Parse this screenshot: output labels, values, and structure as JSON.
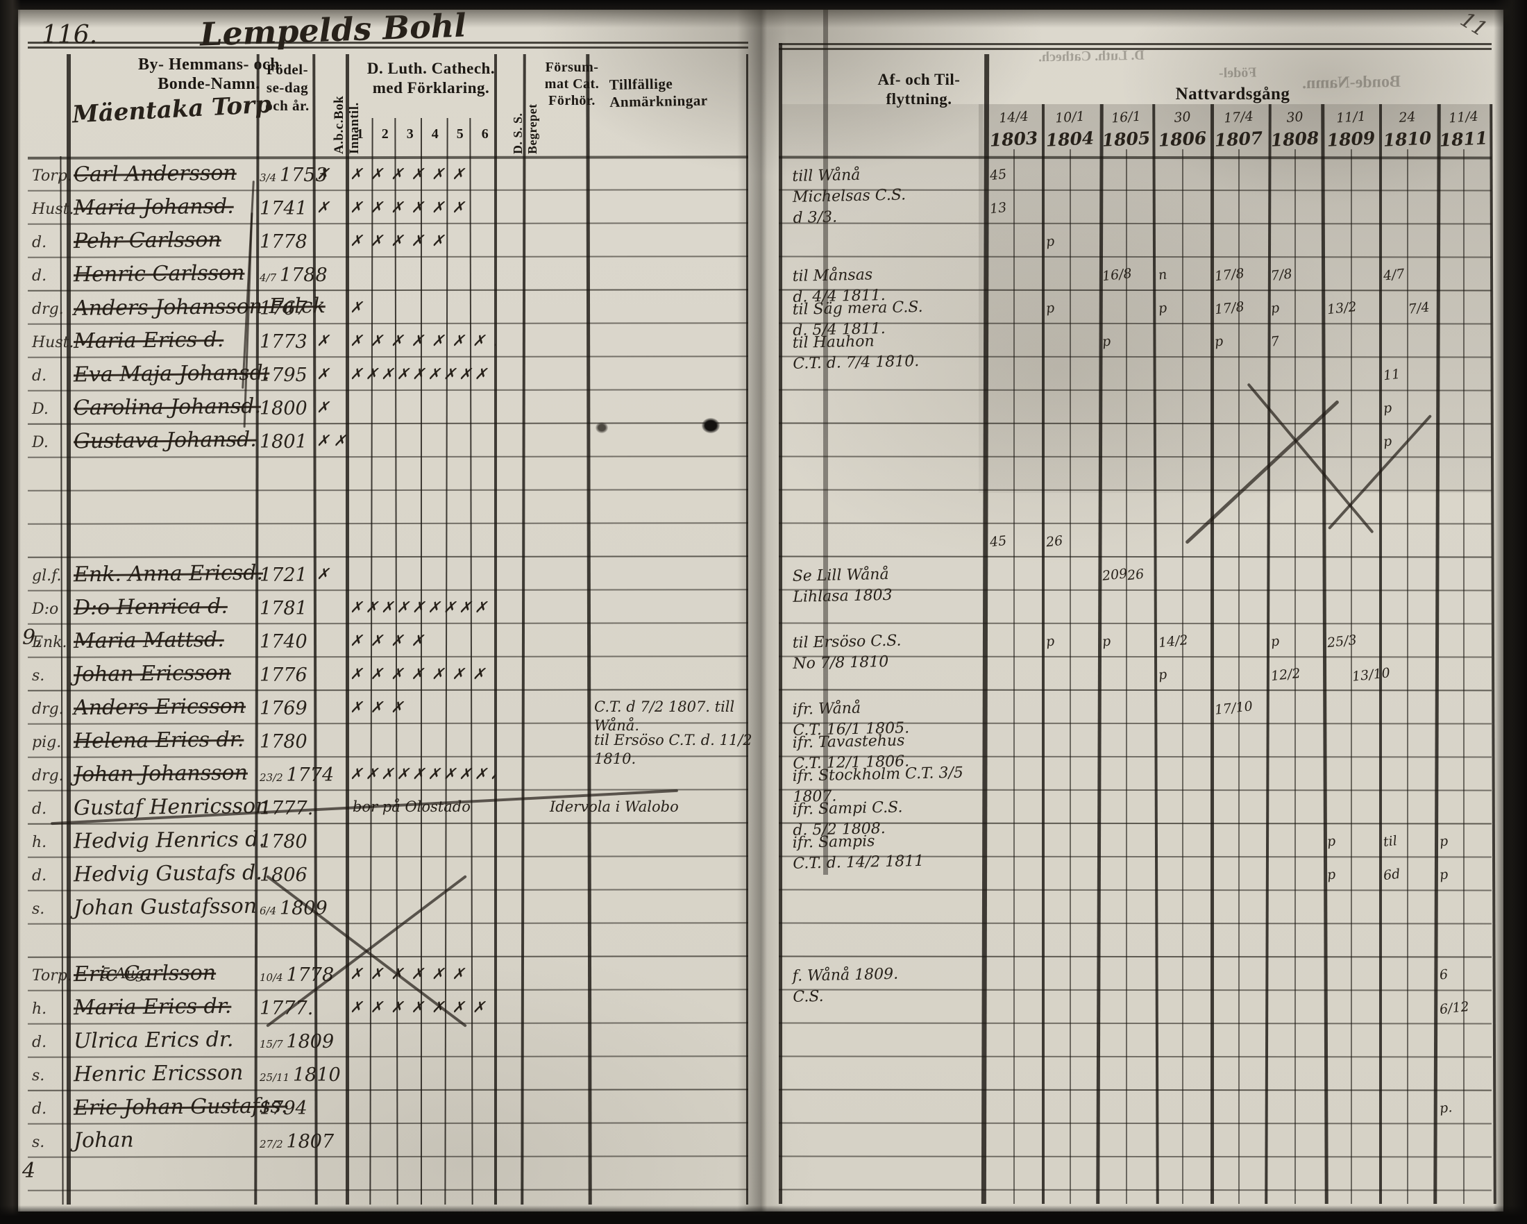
{
  "page": {
    "left_number": "116.",
    "right_number": "11",
    "title_script": "Lempelds Bohl",
    "margin_marks": [
      {
        "line": 15,
        "text": "9,"
      },
      {
        "line": 31,
        "text": "4"
      }
    ]
  },
  "left_page": {
    "headers": {
      "names": [
        "By- Hemmans- och",
        "Bonde-Namn."
      ],
      "village_script": "Mäentaka Torp",
      "birth": [
        "Födel-",
        "se-dag",
        "och år."
      ],
      "abc_vertical": "A.b.c.Bok Innantil.",
      "catechism": [
        "D. Luth. Cathech.",
        "med Förklaring."
      ],
      "catechism_cols": [
        "1",
        "2",
        "3",
        "4",
        "5",
        "6"
      ],
      "dss_vertical": "D. S. S. Begrepet",
      "forsummat": [
        "Försum-",
        "mat Cat.",
        "Förhör."
      ],
      "anmarkningar": "Tillfällige Anmärkningar"
    },
    "notes": [
      {
        "line": 17,
        "col": "anm",
        "lines": [
          "C.T. d 7/2 1807. till",
          "Wånå."
        ]
      },
      {
        "line": 18,
        "col": "anm",
        "lines": [
          "til Ersöso C.T. d. 11/2",
          "1810."
        ]
      },
      {
        "line": 20,
        "col": "cat",
        "lines": [
          "bor på Olostado"
        ]
      },
      {
        "line": 20,
        "col": "dss",
        "lines": [
          "Idervola i Walobo"
        ]
      },
      {
        "line": 25,
        "col": "name_sub",
        "lines": [
          "5 Aug."
        ]
      }
    ]
  },
  "rows": [
    {
      "line": 1,
      "prefix": "Torp.",
      "name": "Carl Andersson",
      "bp": "3/4",
      "by": "1753",
      "abc": "✗",
      "cat": "✗✗✗✗✗✗",
      "strike": true
    },
    {
      "line": 2,
      "prefix": "Hust.",
      "name": "Maria Johansd.",
      "bp": "",
      "by": "1741",
      "abc": "✗",
      "cat": "✗✗✗✗✗✗",
      "strike": true
    },
    {
      "line": 3,
      "prefix": "d.",
      "name": "Pehr Carlsson",
      "bp": "",
      "by": "1778",
      "abc": "",
      "cat": "✗✗✗✗✗",
      "strike": true
    },
    {
      "line": 4,
      "prefix": "d.",
      "name": "Henric Carlsson",
      "bp": "4/7",
      "by": "1788",
      "abc": "",
      "cat": "",
      "strike": true
    },
    {
      "line": 5,
      "prefix": "drg.",
      "name": "Anders Johansson Falck",
      "bp": "",
      "by": "1767",
      "abc": "",
      "cat": "✗",
      "strike": true
    },
    {
      "line": 6,
      "prefix": "Hust.",
      "name": "Maria Erics d.",
      "bp": "",
      "by": "1773",
      "abc": "✗",
      "cat": "✗✗✗✗✗✗✗✗",
      "strike": true
    },
    {
      "line": 7,
      "prefix": "d.",
      "name": "Eva Maja Johansd.",
      "bp": "",
      "by": "1795",
      "abc": "✗",
      "cat": "✗✗✗✗✗✗✗✗✗",
      "strike": true
    },
    {
      "line": 8,
      "prefix": "D.",
      "name": "Carolina Johansd.",
      "bp": "",
      "by": "1800",
      "abc": "✗",
      "cat": "",
      "strike": true
    },
    {
      "line": 9,
      "prefix": "D.",
      "name": "Gustava Johansd.",
      "bp": "",
      "by": "1801",
      "abc": "✗✗",
      "cat": "",
      "strike": true
    },
    {
      "line": 13,
      "prefix": "gl.f.",
      "name": "Enk. Anna Ericsd.",
      "bp": "",
      "by": "1721",
      "abc": "✗",
      "cat": "",
      "strike": true
    },
    {
      "line": 14,
      "prefix": "D:o",
      "name": "D:o Henrica d.",
      "bp": "",
      "by": "1781",
      "abc": "",
      "cat": "✗✗✗✗✗✗✗✗✗",
      "strike": true
    },
    {
      "line": 15,
      "prefix": "Enk.",
      "name": "Maria Mattsd.",
      "bp": "",
      "by": "1740",
      "abc": "",
      "cat": "✗✗✗✗",
      "strike": true
    },
    {
      "line": 16,
      "prefix": "s.",
      "name": "Johan Ericsson",
      "bp": "",
      "by": "1776",
      "abc": "",
      "cat": "✗✗✗✗✗✗✗",
      "strike": true
    },
    {
      "line": 17,
      "prefix": "drg.",
      "name": "Anders Ericsson",
      "bp": "",
      "by": "1769",
      "abc": "",
      "cat": "✗✗✗",
      "strike": true
    },
    {
      "line": 18,
      "prefix": "pig.",
      "name": "Helena Erics dr.",
      "bp": "",
      "by": "1780",
      "abc": "",
      "cat": "",
      "strike": true
    },
    {
      "line": 19,
      "prefix": "drg.",
      "name": "Johan Johansson",
      "bp": "23/2",
      "by": "1774",
      "abc": "",
      "cat": "✗✗✗✗✗✗✗✗✗✗",
      "strike": true
    },
    {
      "line": 20,
      "prefix": "d.",
      "name": "Gustaf Henricsson",
      "bp": "",
      "by": "1777.",
      "abc": "",
      "cat": "",
      "strike": false
    },
    {
      "line": 21,
      "prefix": "h.",
      "name": "Hedvig Henrics d.",
      "bp": "",
      "by": "1780",
      "abc": "",
      "cat": "",
      "strike": false
    },
    {
      "line": 22,
      "prefix": "d.",
      "name": "Hedvig Gustafs d.",
      "bp": "",
      "by": "1806",
      "abc": "",
      "cat": "",
      "strike": false
    },
    {
      "line": 23,
      "prefix": "s.",
      "name": "Johan Gustafsson",
      "bp": "6/4",
      "by": "1809",
      "abc": "",
      "cat": "",
      "strike": false
    },
    {
      "line": 25,
      "prefix": "Torp.",
      "name": "Eric Carlsson",
      "bp": "10/4",
      "by": "1778",
      "abc": "",
      "cat": "✗✗✗✗✗✗",
      "strike": true
    },
    {
      "line": 26,
      "prefix": "h.",
      "name": "Maria Erics dr.",
      "bp": "",
      "by": "1777.",
      "abc": "",
      "cat": "✗✗✗✗✗✗✗",
      "strike": true
    },
    {
      "line": 27,
      "prefix": "d.",
      "name": "Ulrica Erics dr.",
      "bp": "15/7",
      "by": "1809",
      "abc": "",
      "cat": "",
      "strike": false
    },
    {
      "line": 28,
      "prefix": "s.",
      "name": "Henric Ericsson",
      "bp": "25/11",
      "by": "1810",
      "abc": "",
      "cat": "",
      "strike": false
    },
    {
      "line": 29,
      "prefix": "d.",
      "name": "Eric Johan Gustafss.",
      "bp": "",
      "by": "1794",
      "abc": "",
      "cat": "",
      "strike": true
    },
    {
      "line": 30,
      "prefix": "s.",
      "name": "Johan",
      "bp": "27/2",
      "by": "1807",
      "abc": "",
      "cat": "",
      "strike": false
    }
  ],
  "right_page": {
    "headers": {
      "flyttning": [
        "Af- och Til-",
        "flyttning."
      ],
      "nattvardsgang": "Nattvardsgång",
      "years": [
        {
          "date": "14/4",
          "year": "1803"
        },
        {
          "date": "10/1",
          "year": "1804"
        },
        {
          "date": "16/1",
          "year": "1805"
        },
        {
          "date": "30",
          "year": "1806"
        },
        {
          "date": "17/4",
          "year": "1807"
        },
        {
          "date": "30",
          "year": "1808"
        },
        {
          "date": "11/1",
          "year": "1809"
        },
        {
          "date": "24",
          "year": "1810"
        },
        {
          "date": "11/4",
          "year": "1811"
        }
      ]
    },
    "flytt_notes": [
      {
        "line": 1,
        "lines": [
          "till Wånå",
          "Michelsas C.S.",
          "d 3/3."
        ]
      },
      {
        "line": 4,
        "lines": [
          "til Månsas",
          "d. 4/4 1811."
        ]
      },
      {
        "line": 5,
        "lines": [
          "til Säg mera C.S.",
          "d. 5/4 1811."
        ]
      },
      {
        "line": 6,
        "lines": [
          "til Hauhon",
          "C.T. d. 7/4 1810."
        ]
      },
      {
        "line": 13,
        "lines": [
          "Se Lill Wånå",
          "Lihlasa 1803"
        ]
      },
      {
        "line": 15,
        "lines": [
          "til Ersöso C.S.",
          "No 7/8 1810"
        ]
      },
      {
        "line": 17,
        "lines": [
          "ifr. Wånå",
          "C.T. 16/1 1805."
        ]
      },
      {
        "line": 18,
        "lines": [
          "ifr. Tavastehus",
          "C.T. 12/1 1806."
        ]
      },
      {
        "line": 19,
        "lines": [
          "ifr. Stockholm C.T. 3/5",
          "1807."
        ]
      },
      {
        "line": 20,
        "lines": [
          "ifr. Sampi C.S.",
          "d. 5/2 1808."
        ]
      },
      {
        "line": 21,
        "lines": [
          "ifr. Sampis",
          "C.T. d. 14/2 1811"
        ]
      },
      {
        "line": 25,
        "lines": [
          "f. Wånå 1809.",
          "C.S."
        ]
      }
    ],
    "communion_marks": [
      {
        "line": 1,
        "yi": 0,
        "h": 0,
        "t": "45"
      },
      {
        "line": 2,
        "yi": 0,
        "h": 0,
        "t": "13"
      },
      {
        "line": 3,
        "yi": 1,
        "h": 0,
        "t": "p"
      },
      {
        "line": 4,
        "yi": 2,
        "h": 0,
        "t": "16/8"
      },
      {
        "line": 4,
        "yi": 3,
        "h": 0,
        "t": "n"
      },
      {
        "line": 4,
        "yi": 4,
        "h": 0,
        "t": "17/8"
      },
      {
        "line": 4,
        "yi": 5,
        "h": 0,
        "t": "7/8"
      },
      {
        "line": 4,
        "yi": 7,
        "h": 0,
        "t": "4/7"
      },
      {
        "line": 5,
        "yi": 1,
        "h": 0,
        "t": "p"
      },
      {
        "line": 5,
        "yi": 3,
        "h": 0,
        "t": "p"
      },
      {
        "line": 5,
        "yi": 4,
        "h": 0,
        "t": "17/8"
      },
      {
        "line": 5,
        "yi": 5,
        "h": 0,
        "t": "p"
      },
      {
        "line": 5,
        "yi": 6,
        "h": 0,
        "t": "13/2"
      },
      {
        "line": 5,
        "yi": 7,
        "h": 1,
        "t": "7/4"
      },
      {
        "line": 6,
        "yi": 2,
        "h": 0,
        "t": "p"
      },
      {
        "line": 6,
        "yi": 4,
        "h": 0,
        "t": "p"
      },
      {
        "line": 6,
        "yi": 5,
        "h": 0,
        "t": "7"
      },
      {
        "line": 7,
        "yi": 7,
        "h": 0,
        "t": "11"
      },
      {
        "line": 8,
        "yi": 7,
        "h": 0,
        "t": "p"
      },
      {
        "line": 9,
        "yi": 7,
        "h": 0,
        "t": "p"
      },
      {
        "line": 12,
        "yi": 0,
        "h": 0,
        "t": "45"
      },
      {
        "line": 12,
        "yi": 1,
        "h": 0,
        "t": "26"
      },
      {
        "line": 13,
        "yi": 2,
        "h": 0,
        "t": "209"
      },
      {
        "line": 13,
        "yi": 2,
        "h": 1,
        "t": "26"
      },
      {
        "line": 15,
        "yi": 1,
        "h": 0,
        "t": "p"
      },
      {
        "line": 15,
        "yi": 2,
        "h": 0,
        "t": "p"
      },
      {
        "line": 15,
        "yi": 3,
        "h": 0,
        "t": "14/2"
      },
      {
        "line": 15,
        "yi": 5,
        "h": 0,
        "t": "p"
      },
      {
        "line": 15,
        "yi": 6,
        "h": 0,
        "t": "25/3"
      },
      {
        "line": 16,
        "yi": 3,
        "h": 0,
        "t": "p"
      },
      {
        "line": 16,
        "yi": 5,
        "h": 0,
        "t": "12/2"
      },
      {
        "line": 16,
        "yi": 6,
        "h": 1,
        "t": "13/10"
      },
      {
        "line": 17,
        "yi": 4,
        "h": 0,
        "t": "17/10"
      },
      {
        "line": 21,
        "yi": 6,
        "h": 0,
        "t": "p"
      },
      {
        "line": 21,
        "yi": 7,
        "h": 0,
        "t": "til"
      },
      {
        "line": 21,
        "yi": 8,
        "h": 0,
        "t": "p"
      },
      {
        "line": 22,
        "yi": 6,
        "h": 0,
        "t": "p"
      },
      {
        "line": 22,
        "yi": 7,
        "h": 0,
        "t": "6d"
      },
      {
        "line": 22,
        "yi": 8,
        "h": 0,
        "t": "p"
      },
      {
        "line": 25,
        "yi": 8,
        "h": 0,
        "t": "6"
      },
      {
        "line": 26,
        "yi": 8,
        "h": 0,
        "t": "6/12"
      },
      {
        "line": 29,
        "yi": 8,
        "h": 0,
        "t": "p."
      }
    ]
  }
}
